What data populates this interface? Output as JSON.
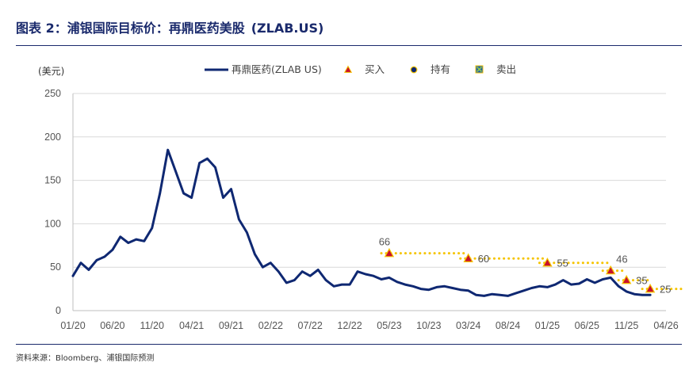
{
  "header": {
    "title": "图表 2：浦银国际目标价：再鼎医药美股",
    "ticker": "(ZLAB.US)"
  },
  "footer": {
    "source": "资料来源：Bloomberg、浦银国际预测"
  },
  "colors": {
    "line": "#0f2872",
    "target_dots": "#f5c400",
    "buy_marker_fill": "#c8102e",
    "buy_marker_edge": "#f5c400",
    "hold_marker_fill": "#0f2872",
    "sell_marker_fill": "#1d5fb0",
    "grid": "#d9d9d9",
    "rule": "#1a2a6c"
  },
  "chart_data": {
    "type": "line",
    "title": "",
    "unit_label": "(美元)",
    "ylim": [
      0,
      250
    ],
    "y_ticks": [
      0,
      50,
      100,
      150,
      200,
      250
    ],
    "x_ticks": [
      "01/20",
      "06/20",
      "11/20",
      "04/21",
      "09/21",
      "02/22",
      "07/22",
      "12/22",
      "05/23",
      "10/23",
      "03/24",
      "08/24",
      "01/25",
      "06/25",
      "11/25",
      "04/26"
    ],
    "grid": "horizontal",
    "legend": {
      "position": "top",
      "entries": [
        {
          "label": "再鼎医药(ZLAB US)",
          "marker": "line"
        },
        {
          "label": "买入",
          "marker": "triangle"
        },
        {
          "label": "持有",
          "marker": "circle"
        },
        {
          "label": "卖出",
          "marker": "x-square"
        }
      ]
    },
    "series": [
      {
        "name": "再鼎医药(ZLAB US)",
        "points": [
          [
            "01/20",
            40
          ],
          [
            "02/20",
            55
          ],
          [
            "03/20",
            47
          ],
          [
            "04/20",
            58
          ],
          [
            "05/20",
            62
          ],
          [
            "06/20",
            70
          ],
          [
            "07/20",
            85
          ],
          [
            "08/20",
            78
          ],
          [
            "09/20",
            82
          ],
          [
            "10/20",
            80
          ],
          [
            "11/20",
            95
          ],
          [
            "12/20",
            135
          ],
          [
            "01/21",
            185
          ],
          [
            "02/21",
            160
          ],
          [
            "03/21",
            135
          ],
          [
            "04/21",
            130
          ],
          [
            "05/21",
            170
          ],
          [
            "06/21",
            175
          ],
          [
            "07/21",
            165
          ],
          [
            "08/21",
            130
          ],
          [
            "09/21",
            140
          ],
          [
            "10/21",
            105
          ],
          [
            "11/21",
            90
          ],
          [
            "12/21",
            65
          ],
          [
            "01/22",
            50
          ],
          [
            "02/22",
            55
          ],
          [
            "03/22",
            45
          ],
          [
            "04/22",
            32
          ],
          [
            "05/22",
            35
          ],
          [
            "06/22",
            45
          ],
          [
            "07/22",
            40
          ],
          [
            "08/22",
            47
          ],
          [
            "09/22",
            35
          ],
          [
            "10/22",
            28
          ],
          [
            "11/22",
            30
          ],
          [
            "12/22",
            30
          ],
          [
            "01/23",
            45
          ],
          [
            "02/23",
            42
          ],
          [
            "03/23",
            40
          ],
          [
            "04/23",
            36
          ],
          [
            "05/23",
            38
          ],
          [
            "06/23",
            33
          ],
          [
            "07/23",
            30
          ],
          [
            "08/23",
            28
          ],
          [
            "09/23",
            25
          ],
          [
            "10/23",
            24
          ],
          [
            "11/23",
            27
          ],
          [
            "12/23",
            28
          ],
          [
            "01/24",
            26
          ],
          [
            "02/24",
            24
          ],
          [
            "03/24",
            23
          ],
          [
            "04/24",
            18
          ],
          [
            "05/24",
            17
          ],
          [
            "06/24",
            19
          ],
          [
            "07/24",
            18
          ],
          [
            "08/24",
            17
          ],
          [
            "09/24",
            20
          ],
          [
            "10/24",
            23
          ],
          [
            "11/24",
            26
          ],
          [
            "12/24",
            28
          ],
          [
            "01/25",
            27
          ],
          [
            "02/25",
            30
          ],
          [
            "03/25",
            35
          ],
          [
            "04/25",
            30
          ],
          [
            "05/25",
            31
          ],
          [
            "06/25",
            36
          ],
          [
            "07/25",
            32
          ],
          [
            "08/25",
            36
          ],
          [
            "09/25",
            38
          ],
          [
            "10/25",
            28
          ],
          [
            "11/25",
            22
          ],
          [
            "12/25",
            19
          ],
          [
            "01/26",
            18
          ],
          [
            "02/26",
            18
          ]
        ]
      }
    ],
    "target_prices": [
      {
        "rating": "买入",
        "date": "05/23",
        "value": 66,
        "until": "03/24"
      },
      {
        "rating": "买入",
        "date": "03/24",
        "value": 60,
        "until": "01/25"
      },
      {
        "rating": "买入",
        "date": "01/25",
        "value": 55,
        "until": "09/25"
      },
      {
        "rating": "买入",
        "date": "09/25",
        "value": 46,
        "until": "11/25"
      },
      {
        "rating": "买入",
        "date": "11/25",
        "value": 35,
        "until": "02/26"
      },
      {
        "rating": "买入",
        "date": "02/26",
        "value": 25,
        "until": "06/26"
      }
    ]
  }
}
